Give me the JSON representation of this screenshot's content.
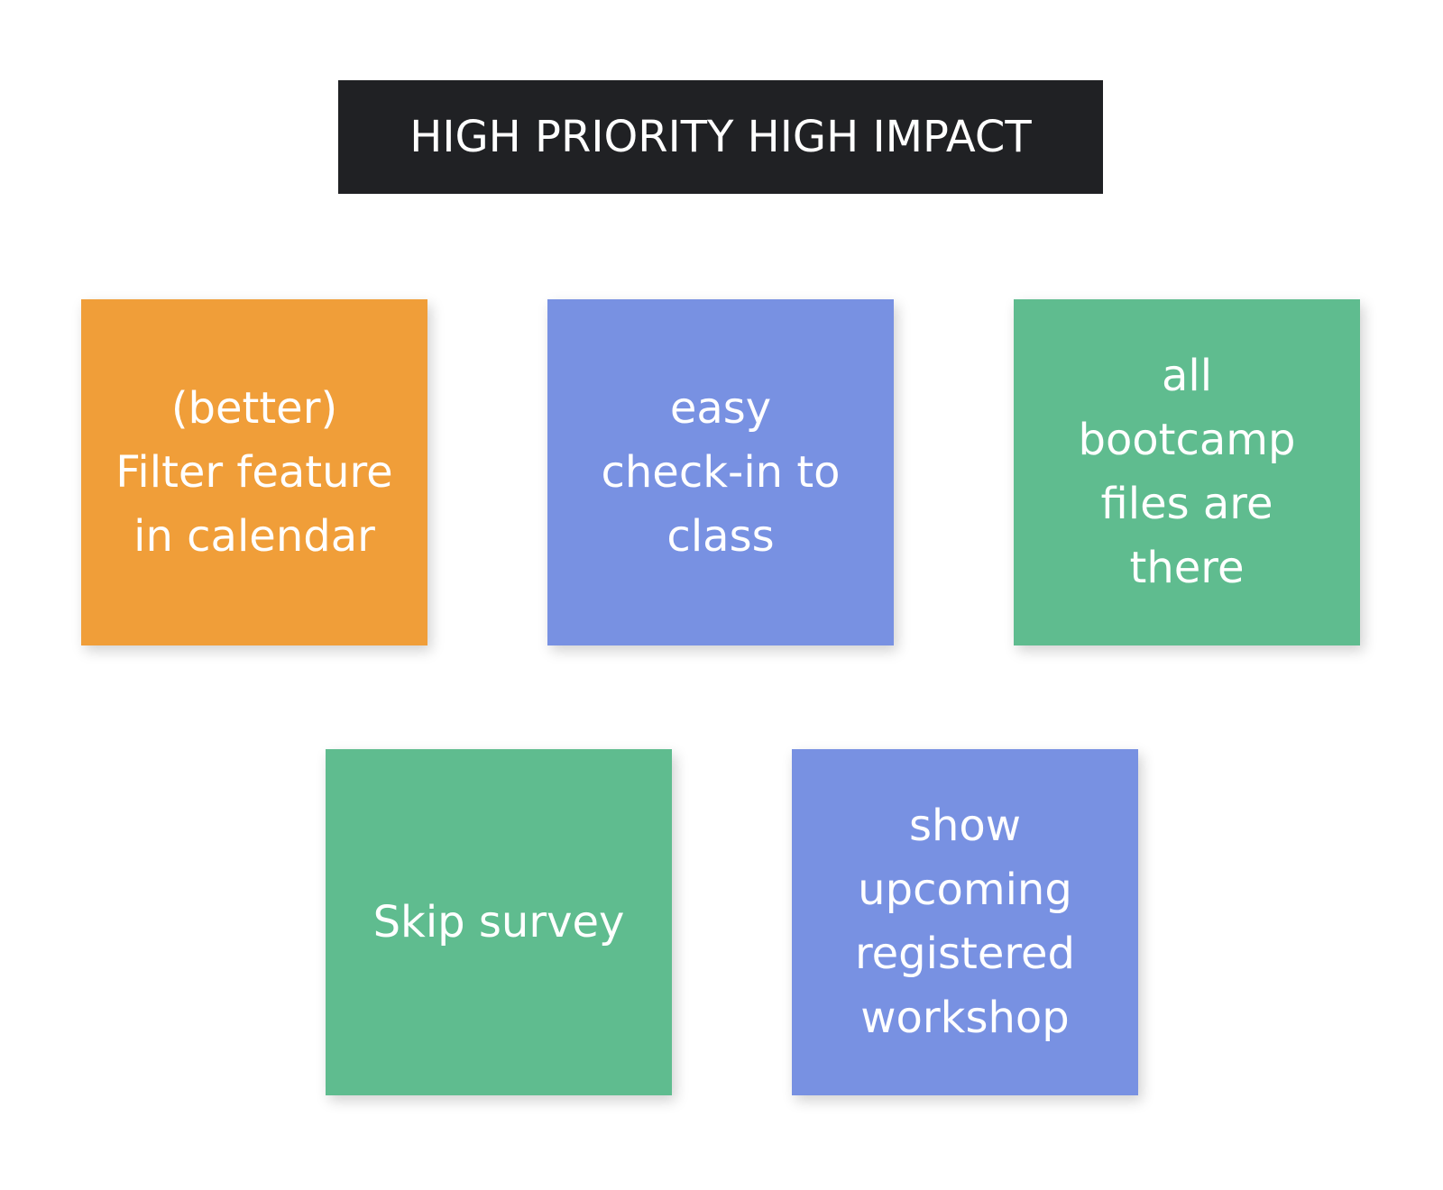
{
  "header": {
    "title": "HIGH PRIORITY HIGH IMPACT"
  },
  "notes": [
    {
      "text": "(better)\nFilter feature\nin calendar",
      "color": "#F09E39"
    },
    {
      "text": "easy\ncheck-in to\nclass",
      "color": "#7891E2"
    },
    {
      "text": "all\nbootcamp\nfiles are\nthere",
      "color": "#5FBC8F"
    },
    {
      "text": "Skip survey",
      "color": "#5FBC8F"
    },
    {
      "text": "show\nupcoming\nregistered\nworkshop",
      "color": "#7891E2"
    }
  ]
}
